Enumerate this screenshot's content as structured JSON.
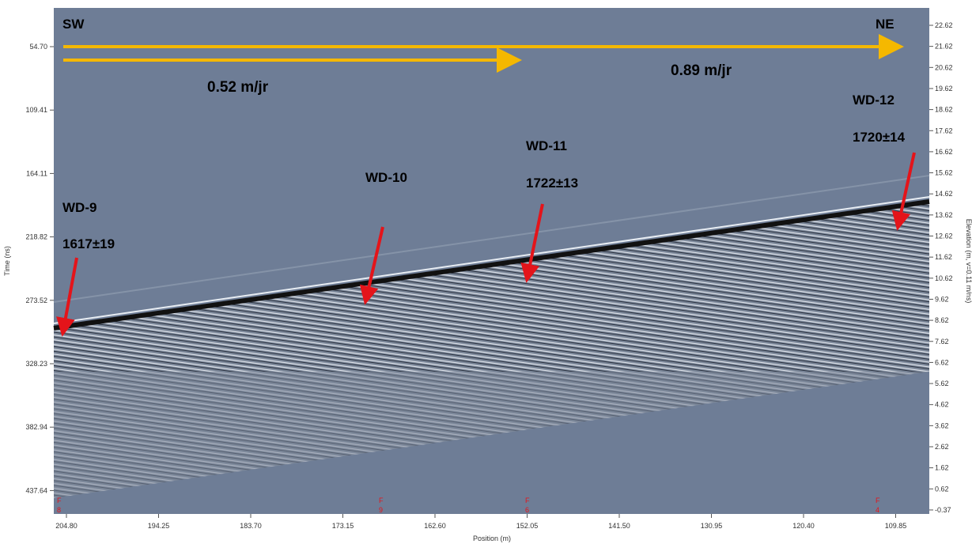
{
  "header": {
    "left": "SW",
    "right": "NE"
  },
  "rates": [
    "0.52 m/jr",
    "0.89 m/jr"
  ],
  "samples": [
    {
      "name": "WD-9",
      "age": "1617±19"
    },
    {
      "name": "WD-10"
    },
    {
      "name": "WD-11",
      "age": "1722±13"
    },
    {
      "name": "WD-12",
      "age": "1720±14"
    }
  ],
  "axes": {
    "left": {
      "title": "Time (ns)",
      "ticks": [
        "54.70",
        "109.41",
        "164.11",
        "218.82",
        "273.52",
        "328.23",
        "382.94",
        "437.64"
      ]
    },
    "right": {
      "title": "Elevation (m, v=0.11 m/ns)",
      "ticks": [
        "22.62",
        "21.62",
        "20.62",
        "19.62",
        "18.62",
        "17.62",
        "16.62",
        "15.62",
        "14.62",
        "13.62",
        "12.62",
        "11.62",
        "10.62",
        "9.62",
        "8.62",
        "7.62",
        "6.62",
        "5.62",
        "4.62",
        "3.62",
        "2.62",
        "1.62",
        "0.62",
        "-0.37"
      ]
    },
    "bottom": {
      "title": "Position (m)",
      "ticks": [
        "204.80",
        "194.25",
        "183.70",
        "173.15",
        "162.60",
        "152.05",
        "141.50",
        "130.95",
        "120.40",
        "109.85"
      ]
    }
  },
  "markers": [
    {
      "top": "F",
      "bottom": "8"
    },
    {
      "top": "F",
      "bottom": "9"
    },
    {
      "top": "F",
      "bottom": "6"
    },
    {
      "top": "F",
      "bottom": "4"
    }
  ]
}
